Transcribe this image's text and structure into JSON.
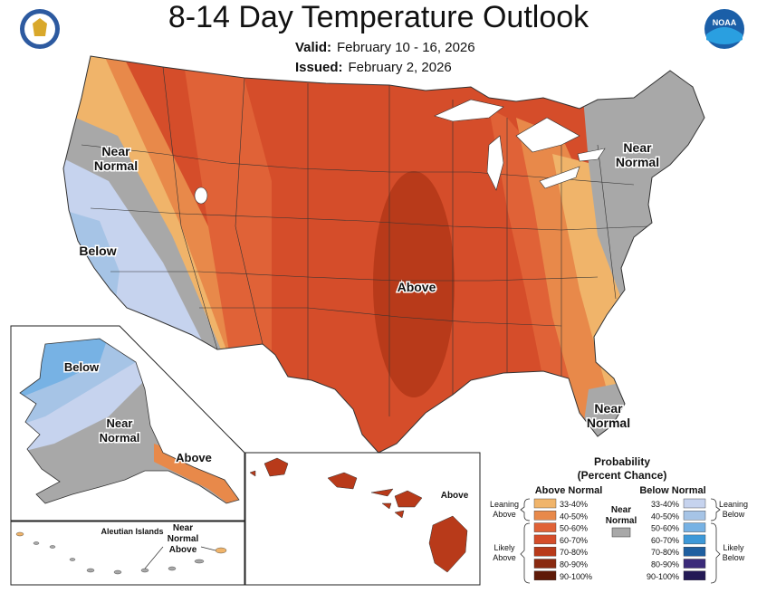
{
  "header": {
    "title": "8-14 Day Temperature Outlook",
    "valid_label": "Valid:",
    "valid_value": "February 10 - 16, 2026",
    "issued_label": "Issued:",
    "issued_value": "February 2, 2026"
  },
  "logos": {
    "left_icon": "doc-seal-icon",
    "right_icon": "noaa-logo-icon",
    "right_text": "NOAA"
  },
  "map_labels": {
    "near_normal_west_1": "Near",
    "near_normal_west_2": "Normal",
    "below_west": "Below",
    "above_central": "Above",
    "near_normal_ne_1": "Near",
    "near_normal_ne_2": "Normal",
    "near_normal_fl_1": "Near",
    "near_normal_fl_2": "Normal",
    "alaska_below": "Below",
    "alaska_near_1": "Near",
    "alaska_near_2": "Normal",
    "alaska_above": "Above",
    "aleutian_title": "Aleutian Islands",
    "aleutian_near": "Near",
    "aleutian_normal": "Normal",
    "aleutian_above": "Above",
    "hawaii_above": "Above"
  },
  "legend": {
    "title_1": "Probability",
    "title_2": "(Percent Chance)",
    "above_header": "Above Normal",
    "below_header": "Below Normal",
    "near_1": "Near",
    "near_2": "Normal",
    "leaning_above_1": "Leaning",
    "leaning_above_2": "Above",
    "likely_above_1": "Likely",
    "likely_above_2": "Above",
    "leaning_below_1": "Leaning",
    "leaning_below_2": "Below",
    "likely_below_1": "Likely",
    "likely_below_2": "Below",
    "above_bins": [
      {
        "label": "33-40%",
        "color": "#f0b46a"
      },
      {
        "label": "40-50%",
        "color": "#e8894a"
      },
      {
        "label": "50-60%",
        "color": "#e06237"
      },
      {
        "label": "60-70%",
        "color": "#d54d2a"
      },
      {
        "label": "70-80%",
        "color": "#b83a1a"
      },
      {
        "label": "80-90%",
        "color": "#8a2a10"
      },
      {
        "label": "90-100%",
        "color": "#5e1a08"
      }
    ],
    "below_bins": [
      {
        "label": "33-40%",
        "color": "#c6d3ee"
      },
      {
        "label": "40-50%",
        "color": "#a6c4e6"
      },
      {
        "label": "50-60%",
        "color": "#77b2e4"
      },
      {
        "label": "60-70%",
        "color": "#3d98d8"
      },
      {
        "label": "70-80%",
        "color": "#1f5fa0"
      },
      {
        "label": "80-90%",
        "color": "#3a2a7a"
      },
      {
        "label": "90-100%",
        "color": "#241a55"
      }
    ],
    "near_color": "#a8a8a8"
  }
}
